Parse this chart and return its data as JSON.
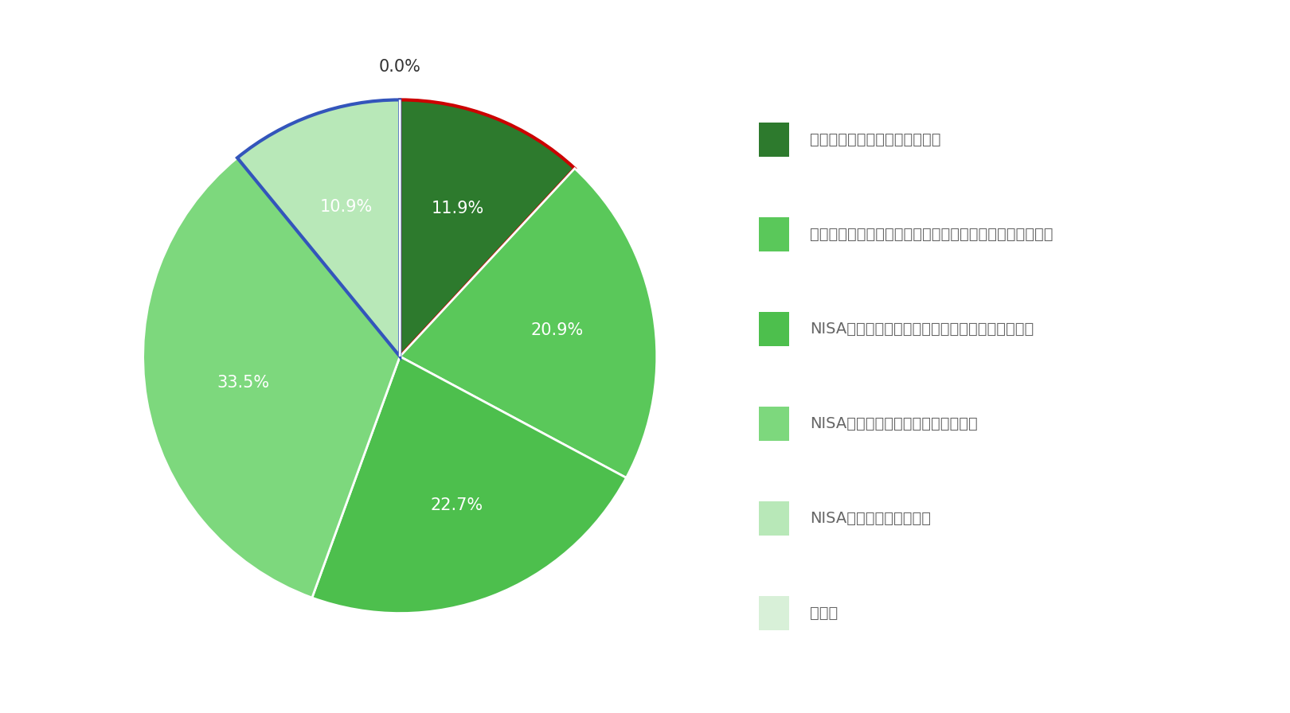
{
  "labels": [
    "新しい制度内容まで知っている",
    "新しい制度ができることは知っているが、内容は知らない",
    "NISAは知っているが、新制度については知らない",
    "NISAの名前を聞いたことがある程度",
    "NISA自体を初めて聞いた",
    "その他"
  ],
  "values": [
    11.9,
    20.9,
    22.7,
    33.5,
    10.9,
    0.0
  ],
  "colors": [
    "#2d7a2d",
    "#5ac85a",
    "#4dbf4d",
    "#7dd87d",
    "#b8e8b8",
    "#d8f0d8"
  ],
  "pct_labels": [
    "11.9%",
    "20.9%",
    "22.7%",
    "33.5%",
    "10.9%",
    "0.0%"
  ],
  "legend_colors": [
    "#2d7a2d",
    "#5ac85a",
    "#4dbf4d",
    "#7dd87d",
    "#b8e8b8",
    "#d8f0d8"
  ],
  "background_color": "#ffffff",
  "text_color": "#666666",
  "startangle": 90,
  "special_edge_red_index": 0,
  "special_edge_blue_index": 4,
  "red_edge_color": "#cc0000",
  "blue_edge_color": "#3355bb",
  "white_edge_color": "#ffffff",
  "label_font_size": 15,
  "legend_font_size": 14
}
